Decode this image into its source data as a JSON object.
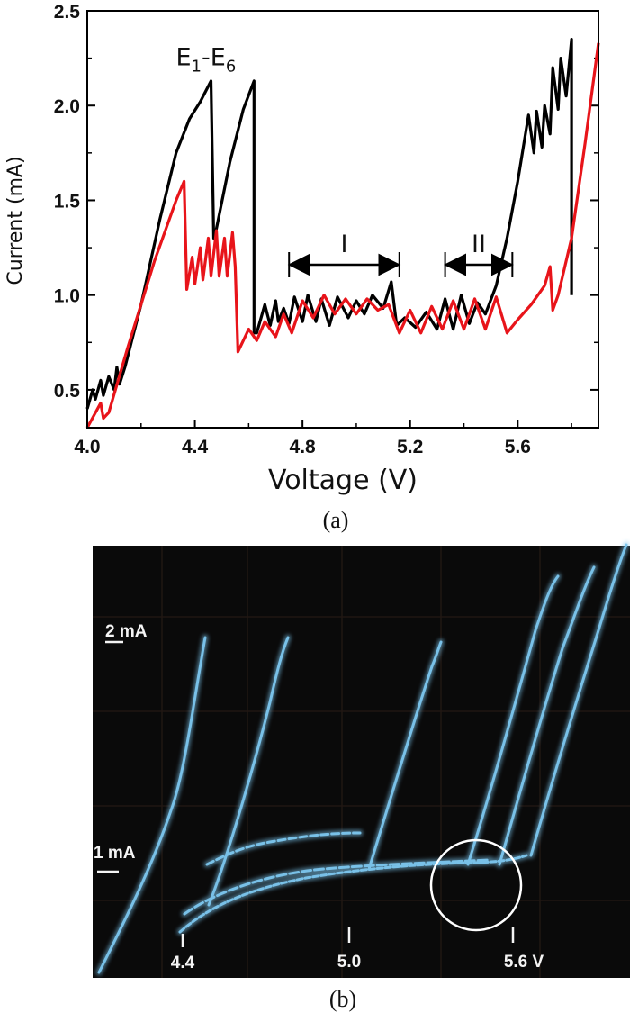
{
  "chart_data": [
    {
      "type": "line",
      "xlabel": "Voltage (V)",
      "ylabel": "Current (mA)",
      "xlim": [
        4.0,
        5.9
      ],
      "ylim": [
        0.3,
        2.5
      ],
      "xticks": [
        "4.0",
        "4.4",
        "4.8",
        "5.2",
        "5.6"
      ],
      "yticks": [
        "0.5",
        "1.0",
        "1.5",
        "2.0",
        "2.5"
      ],
      "grid": false,
      "annotations": {
        "peak_label": {
          "base": "E",
          "sub1": "1",
          "dash": "-",
          "base2": "E",
          "sub2": "6",
          "x": 4.48,
          "y": 2.28
        },
        "region_I": {
          "label": "I",
          "x_start": 4.75,
          "x_end": 5.16,
          "y": 1.16
        },
        "region_II": {
          "label": "II",
          "x_start": 5.33,
          "x_end": 5.58,
          "y": 1.16
        }
      },
      "series": [
        {
          "color": "#000000",
          "x": [
            4.0,
            4.02,
            4.03,
            4.05,
            4.06,
            4.08,
            4.1,
            4.11,
            4.12,
            4.14,
            4.2,
            4.27,
            4.33,
            4.38,
            4.42,
            4.46,
            4.47,
            4.48,
            4.53,
            4.58,
            4.62,
            4.62,
            4.63,
            4.66,
            4.68,
            4.7,
            4.71,
            4.73,
            4.75,
            4.77,
            4.8,
            4.82,
            4.85,
            4.87,
            4.9,
            4.93,
            4.97,
            5.0,
            5.03,
            5.06,
            5.1,
            5.13,
            5.15,
            5.18,
            5.22,
            5.26,
            5.3,
            5.33,
            5.36,
            5.39,
            5.42,
            5.45,
            5.48,
            5.52,
            5.56,
            5.6,
            5.64,
            5.66,
            5.67,
            5.69,
            5.7,
            5.72,
            5.73,
            5.75,
            5.76,
            5.78,
            5.8,
            5.8
          ],
          "y": [
            0.4,
            0.5,
            0.45,
            0.55,
            0.47,
            0.57,
            0.5,
            0.62,
            0.53,
            0.62,
            0.95,
            1.4,
            1.75,
            1.93,
            2.02,
            2.13,
            1.3,
            1.35,
            1.7,
            1.98,
            2.13,
            0.8,
            0.8,
            0.95,
            0.84,
            0.97,
            0.86,
            0.93,
            0.85,
            0.99,
            0.86,
            1.0,
            0.86,
            0.98,
            0.84,
            0.99,
            0.88,
            0.97,
            0.9,
            1.0,
            0.93,
            1.07,
            0.84,
            0.88,
            0.83,
            0.91,
            0.82,
            0.98,
            0.82,
            1.0,
            0.85,
            0.96,
            0.9,
            1.05,
            1.3,
            1.6,
            1.95,
            1.75,
            1.97,
            1.78,
            2.0,
            1.85,
            2.2,
            1.98,
            2.25,
            2.05,
            2.35,
            1.0
          ]
        },
        {
          "color": "#e8141a",
          "x": [
            4.0,
            4.05,
            4.06,
            4.08,
            4.15,
            4.25,
            4.33,
            4.36,
            4.37,
            4.39,
            4.4,
            4.42,
            4.43,
            4.45,
            4.46,
            4.48,
            4.49,
            4.51,
            4.52,
            4.54,
            4.55,
            4.56,
            4.6,
            4.63,
            4.66,
            4.7,
            4.73,
            4.76,
            4.8,
            4.84,
            4.88,
            4.92,
            4.96,
            5.0,
            5.04,
            5.08,
            5.12,
            5.16,
            5.2,
            5.24,
            5.28,
            5.32,
            5.36,
            5.4,
            5.44,
            5.48,
            5.52,
            5.56,
            5.6,
            5.65,
            5.7,
            5.72,
            5.73,
            5.75,
            5.8,
            5.85,
            5.9
          ],
          "y": [
            0.3,
            0.43,
            0.35,
            0.38,
            0.72,
            1.18,
            1.5,
            1.6,
            1.03,
            1.2,
            1.06,
            1.25,
            1.08,
            1.3,
            1.1,
            1.34,
            1.1,
            1.3,
            1.1,
            1.33,
            1.15,
            0.7,
            0.82,
            0.76,
            0.86,
            0.78,
            0.9,
            0.8,
            0.97,
            0.88,
            1.0,
            0.9,
            0.98,
            0.9,
            0.98,
            0.92,
            0.95,
            0.8,
            0.92,
            0.8,
            0.94,
            0.82,
            0.97,
            0.82,
            0.98,
            0.82,
            0.99,
            0.8,
            0.87,
            0.95,
            1.05,
            1.15,
            0.92,
            1.0,
            1.3,
            1.8,
            2.33
          ]
        }
      ]
    },
    {
      "type": "photo-oscilloscope",
      "scale_labels": [
        "2 mA",
        "1 mA"
      ],
      "x_markers": [
        "4.4",
        "5.0",
        "5.6 V"
      ]
    }
  ],
  "panels": {
    "a": "(a)",
    "b": "(b)"
  },
  "colors": {
    "black_trace": "#000000",
    "red_trace": "#e8141a",
    "scope_trace": "#7cc6ee",
    "scope_bg": "#0a0a0a"
  }
}
